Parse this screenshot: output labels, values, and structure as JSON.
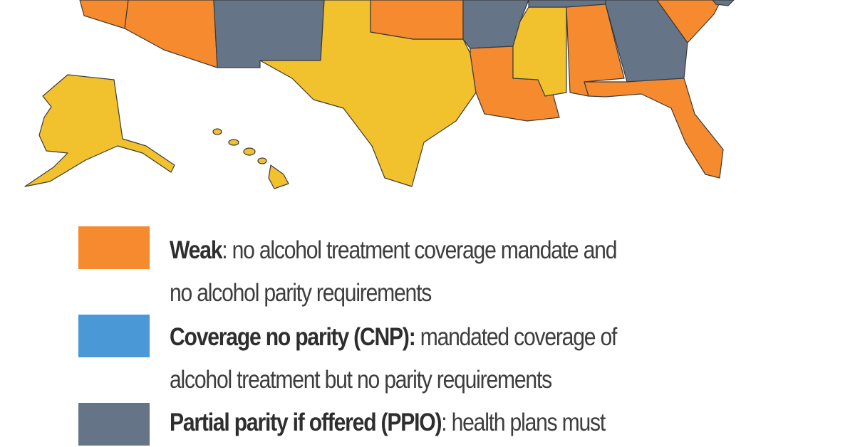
{
  "legend": {
    "items": [
      {
        "label": "Weak",
        "color": "#f68a2e",
        "lines": [
          ": no alcohol treatment coverage mandate and",
          "no alcohol parity requirements"
        ]
      },
      {
        "label": "Coverage no parity (CNP):",
        "color": "#4a98d6",
        "lines": [
          " mandated coverage of",
          "alcohol treatment but no parity requirements"
        ]
      },
      {
        "label": "Partial parity if offered (PPIO)",
        "color": "#667487",
        "lines": [
          ": health plans must"
        ]
      }
    ]
  }
}
